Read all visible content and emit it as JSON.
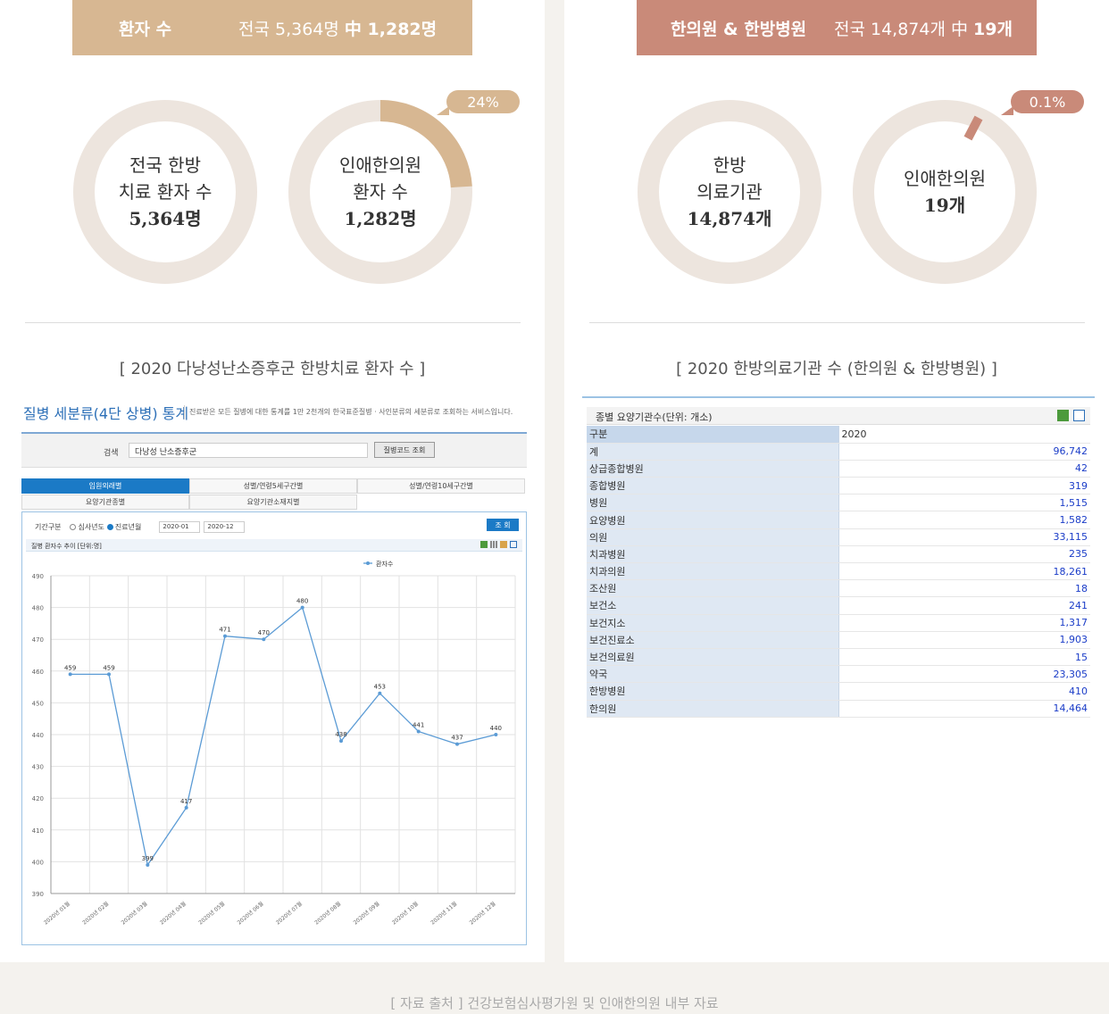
{
  "left": {
    "banner": {
      "title": "환자 수",
      "stat_prefix": "전국 5,364명 ",
      "stat_highlight": "中 1,282명"
    },
    "donut1": {
      "line1": "전국 한방",
      "line2": "치료 환자 수",
      "line3": "5,364명"
    },
    "donut2": {
      "line1": "인애한의원",
      "line2": "환자 수",
      "line3": "1,282명",
      "percent_label": "24%",
      "fraction": 0.24
    },
    "caption": "[ 2020 다낭성난소증후군 한방치료 환자 수 ]",
    "screenshot": {
      "title": "질병 세분류(4단 상병) 통계",
      "description": "진료받은 모든 질병에 대한 통계를 1만 2천개의 한국표준질병 · 사인분류의 세분류로 조회하는 서비스입니다.",
      "search_label": "검색",
      "search_value": "다낭성 난소증후군",
      "search_button": "질병코드 조회",
      "tabs": [
        "입원외래별",
        "성별/연령5세구간별",
        "성별/연령10세구간별",
        "요양기관종별",
        "요양기관소재지별"
      ],
      "period_label": "기간구분",
      "radio1": "심사년도",
      "radio2": "진료년월",
      "period_from": "2020-01",
      "period_to": "2020-12",
      "query_button": "조 회",
      "chart_title": "질병 환자수 추이 [단위:명]"
    }
  },
  "right": {
    "banner": {
      "title": "한의원 & 한방병원",
      "stat_prefix": "전국 14,874개 中 ",
      "stat_highlight": "19개"
    },
    "donut1": {
      "line1": "한방",
      "line2": "의료기관",
      "line3": "14,874개"
    },
    "donut2": {
      "line1": "인애한의원",
      "line2": "19개",
      "percent_label": "0.1%",
      "fraction": 0.001
    },
    "caption": "[ 2020 한방의료기관 수 (한의원 & 한방병원) ]",
    "table": {
      "title": "종별 요양기관수(단위: 개소)",
      "header": [
        "구분",
        "2020"
      ],
      "rows": [
        [
          "계",
          "96,742"
        ],
        [
          "상급종합병원",
          "42"
        ],
        [
          "종합병원",
          "319"
        ],
        [
          "병원",
          "1,515"
        ],
        [
          "요양병원",
          "1,582"
        ],
        [
          "의원",
          "33,115"
        ],
        [
          "치과병원",
          "235"
        ],
        [
          "치과의원",
          "18,261"
        ],
        [
          "조산원",
          "18"
        ],
        [
          "보건소",
          "241"
        ],
        [
          "보건지소",
          "1,317"
        ],
        [
          "보건진료소",
          "1,903"
        ],
        [
          "보건의료원",
          "15"
        ],
        [
          "약국",
          "23,305"
        ],
        [
          "한방병원",
          "410"
        ],
        [
          "한의원",
          "14,464"
        ]
      ]
    }
  },
  "source": "[ 자료 출처 ]    건강보험심사평가원 및 인애한의원 내부 자료",
  "colors": {
    "tan": "#d7b792",
    "rose": "#c98a79",
    "ring": "#ede5de",
    "line": "#5b9bd5"
  },
  "chart_data": {
    "type": "line",
    "series": [
      {
        "name": "환자수",
        "values": [
          459,
          459,
          399,
          417,
          471,
          470,
          480,
          438,
          453,
          441,
          437,
          440
        ]
      }
    ],
    "categories": [
      "2020년 01월",
      "2020년 02월",
      "2020년 03월",
      "2020년 04월",
      "2020년 05월",
      "2020년 06월",
      "2020년 07월",
      "2020년 08월",
      "2020년 09월",
      "2020년 10월",
      "2020년 11월",
      "2020년 12월"
    ],
    "yticks": [
      390,
      400,
      410,
      420,
      430,
      440,
      450,
      460,
      470,
      480,
      490
    ],
    "ylim": [
      390,
      490
    ],
    "grid": true,
    "legend": "top-right"
  }
}
